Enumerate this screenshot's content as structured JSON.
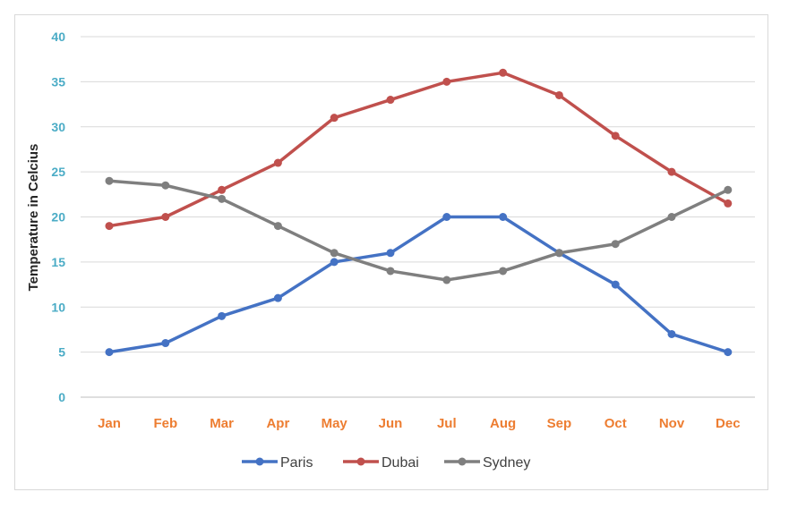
{
  "chart_data": {
    "type": "line",
    "categories": [
      "Jan",
      "Feb",
      "Mar",
      "Apr",
      "May",
      "Jun",
      "Jul",
      "Aug",
      "Sep",
      "Oct",
      "Nov",
      "Dec"
    ],
    "ylabel": "Temperature in Celcius",
    "xlabel": "",
    "title": "",
    "ylim": [
      0,
      40
    ],
    "yticks": [
      "0",
      "5",
      "10",
      "15",
      "20",
      "25",
      "30",
      "35",
      "40"
    ],
    "grid": "horizontal",
    "legend_position": "bottom",
    "series": [
      {
        "name": "Paris",
        "color": "#4472c4",
        "values": [
          5,
          6,
          9,
          11,
          15,
          16,
          20,
          20,
          16,
          12.5,
          7,
          5
        ]
      },
      {
        "name": "Dubai",
        "color": "#c0504d",
        "values": [
          19,
          20,
          23,
          26,
          31,
          33,
          35,
          36,
          33.5,
          29,
          25,
          21.5
        ]
      },
      {
        "name": "Sydney",
        "color": "#7f7f7f",
        "values": [
          24,
          23.5,
          22,
          19,
          16,
          14,
          13,
          14,
          16,
          17,
          20,
          23
        ]
      }
    ]
  }
}
